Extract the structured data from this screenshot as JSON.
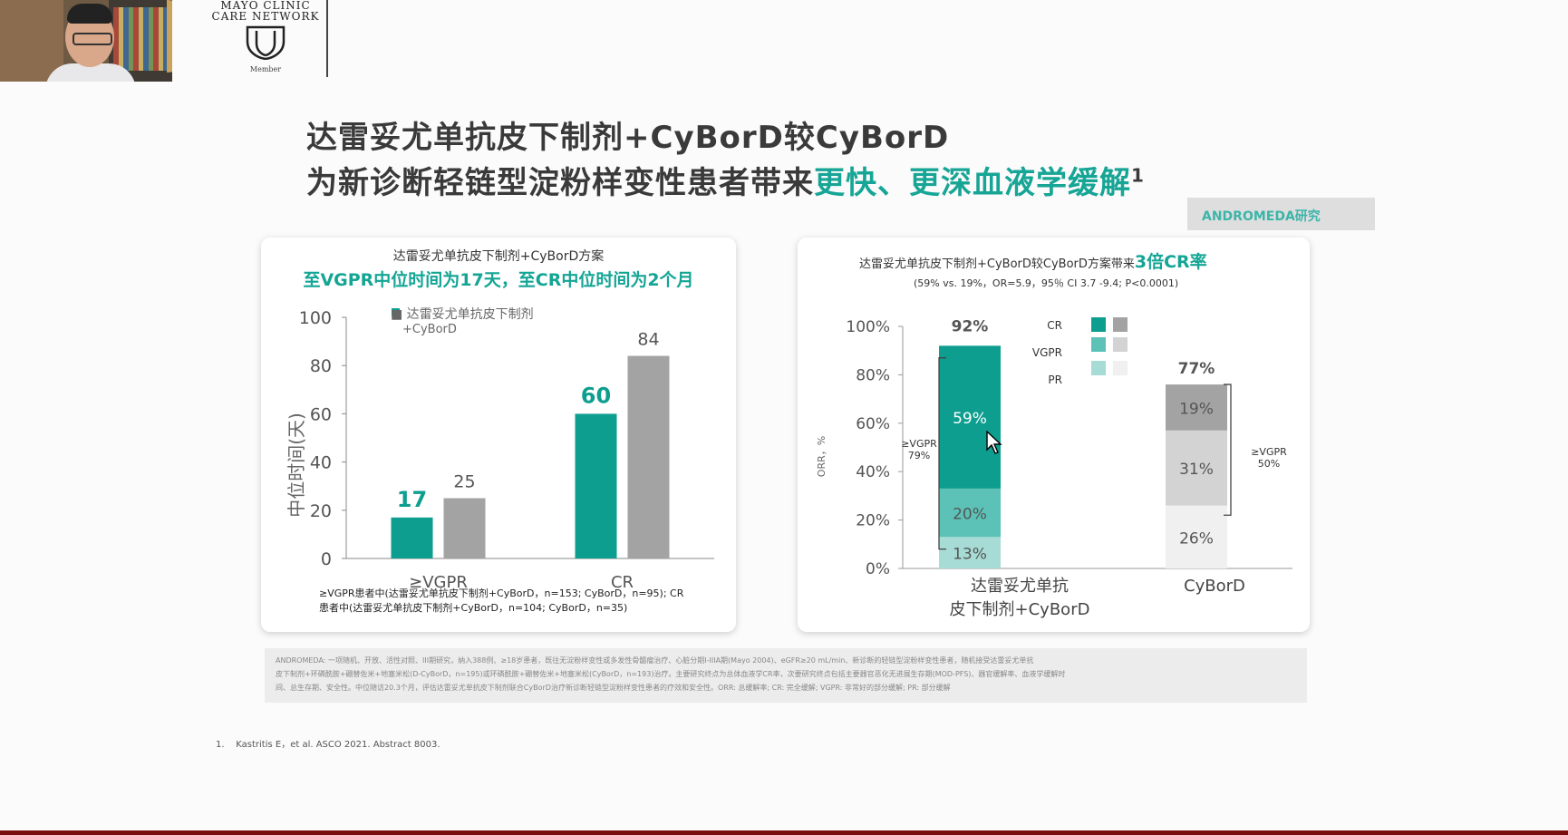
{
  "header": {
    "logo_line1": "MAYO CLINIC",
    "logo_line2": "CARE NETWORK",
    "logo_member": "Member"
  },
  "title": {
    "line1": "达雷妥尤单抗皮下制剂+CyBorD较CyBorD",
    "line2_plain": "为新诊断轻链型淀粉样变性患者带来",
    "line2_highlight": "更快、更深血液学缓解",
    "line2_sup": "1"
  },
  "tag": "ANDROMEDA研究",
  "left_panel": {
    "heading": "达雷妥尤单抗皮下制剂+CyBorD方案",
    "subheading": "至VGPR中位时间为17天，至CR中位时间为2个月",
    "legend_line1": "■ 达雷妥尤单抗皮下制剂",
    "legend_line2": "+CyBorD",
    "note_line1": "≥VGPR患者中(达雷妥尤单抗皮下制剂+CyBorD，n=153; CyBorD，n=95); CR",
    "note_line2": "患者中(达雷妥尤单抗皮下制剂+CyBorD，n=104; CyBorD，n=35)"
  },
  "right_panel": {
    "heading_plain": "达雷妥尤单抗皮下制剂+CyBorD较CyBorD方案带来",
    "heading_highlight": "3倍CR率",
    "stats": "(59% vs. 19%，OR=5.9，95％ CI 3.7 -9.4; P<0.0001)",
    "legend": [
      "CR",
      "VGPR",
      "PR"
    ],
    "bracket_left_line1": "≥VGPR",
    "bracket_left_line2": "79%",
    "bracket_right_line1": "≥VGPR",
    "bracket_right_line2": "50%",
    "xlabel_a_line1": "达雷妥尤单抗",
    "xlabel_a_line2": "皮下制剂+CyBorD",
    "xlabel_b": "CyBorD"
  },
  "footnote": {
    "line1": "ANDROMEDA: 一项随机、开放、活性对照、III期研究，纳入388例、≥18岁患者，既往无淀粉样变性或多发性骨髓瘤治疗、心脏分期I-IIIA期(Mayo 2004)、eGFR≥20 mL/min、新诊断的轻链型淀粉样变性患者，随机接受达雷妥尤单抗",
    "line2": "皮下制剂+环磷酰胺+硼替佐米+地塞米松(D-CyBorD，n=195)或环磷酰胺+硼替佐米+地塞米松(CyBorD，n=193)治疗。主要研究终点为总体血液学CR率，次要研究终点包括主要器官恶化无进展生存期(MOD-PFS)、器官缓解率、血液学缓解时",
    "line3": "间、总生存期、安全性。中位随访20.3个月，评估达雷妥尤单抗皮下制剂联合CyBorD治疗新诊断轻链型淀粉样变性患者的疗效和安全性。ORR: 总缓解率; CR: 完全缓解; VGPR: 非常好的部分缓解; PR: 部分缓解"
  },
  "reference": "1.    Kastritis E，et al. ASCO 2021. Abstract 8003.",
  "colors": {
    "teal": "#0e9e8f",
    "teal_mid": "#5cc2b7",
    "teal_light": "#a6dcd5",
    "grey_dark": "#a3a3a3",
    "grey_mid": "#d3d3d3",
    "grey_light": "#f0f0f0"
  },
  "chart_data": [
    {
      "type": "bar",
      "title": "至VGPR中位时间为17天，至CR中位时间为2个月",
      "ylabel": "中位时间(天)",
      "xlabel": "",
      "categories": [
        "≥VGPR",
        "CR"
      ],
      "series": [
        {
          "name": "达雷妥尤单抗皮下制剂+CyBorD",
          "values": [
            17,
            60
          ]
        },
        {
          "name": "CyBorD",
          "values": [
            25,
            84
          ]
        }
      ],
      "ylim": [
        0,
        100
      ],
      "yticks": [
        0,
        20,
        40,
        60,
        80,
        100
      ],
      "grid": false
    },
    {
      "type": "bar",
      "stacked": true,
      "title": "达雷妥尤单抗皮下制剂+CyBorD较CyBorD方案带来3倍CR率",
      "ylabel": "ORR，%",
      "xlabel": "",
      "categories": [
        "达雷妥尤单抗皮下制剂+CyBorD",
        "CyBorD"
      ],
      "series": [
        {
          "name": "PR",
          "values": [
            13,
            26
          ]
        },
        {
          "name": "VGPR",
          "values": [
            20,
            31
          ]
        },
        {
          "name": "CR",
          "values": [
            59,
            19
          ]
        }
      ],
      "totals": [
        "92%",
        "77%"
      ],
      "ylim": [
        0,
        100
      ],
      "yticks": [
        0,
        20,
        40,
        60,
        80,
        100
      ],
      "tick_suffix": "%",
      "grid": false
    }
  ]
}
